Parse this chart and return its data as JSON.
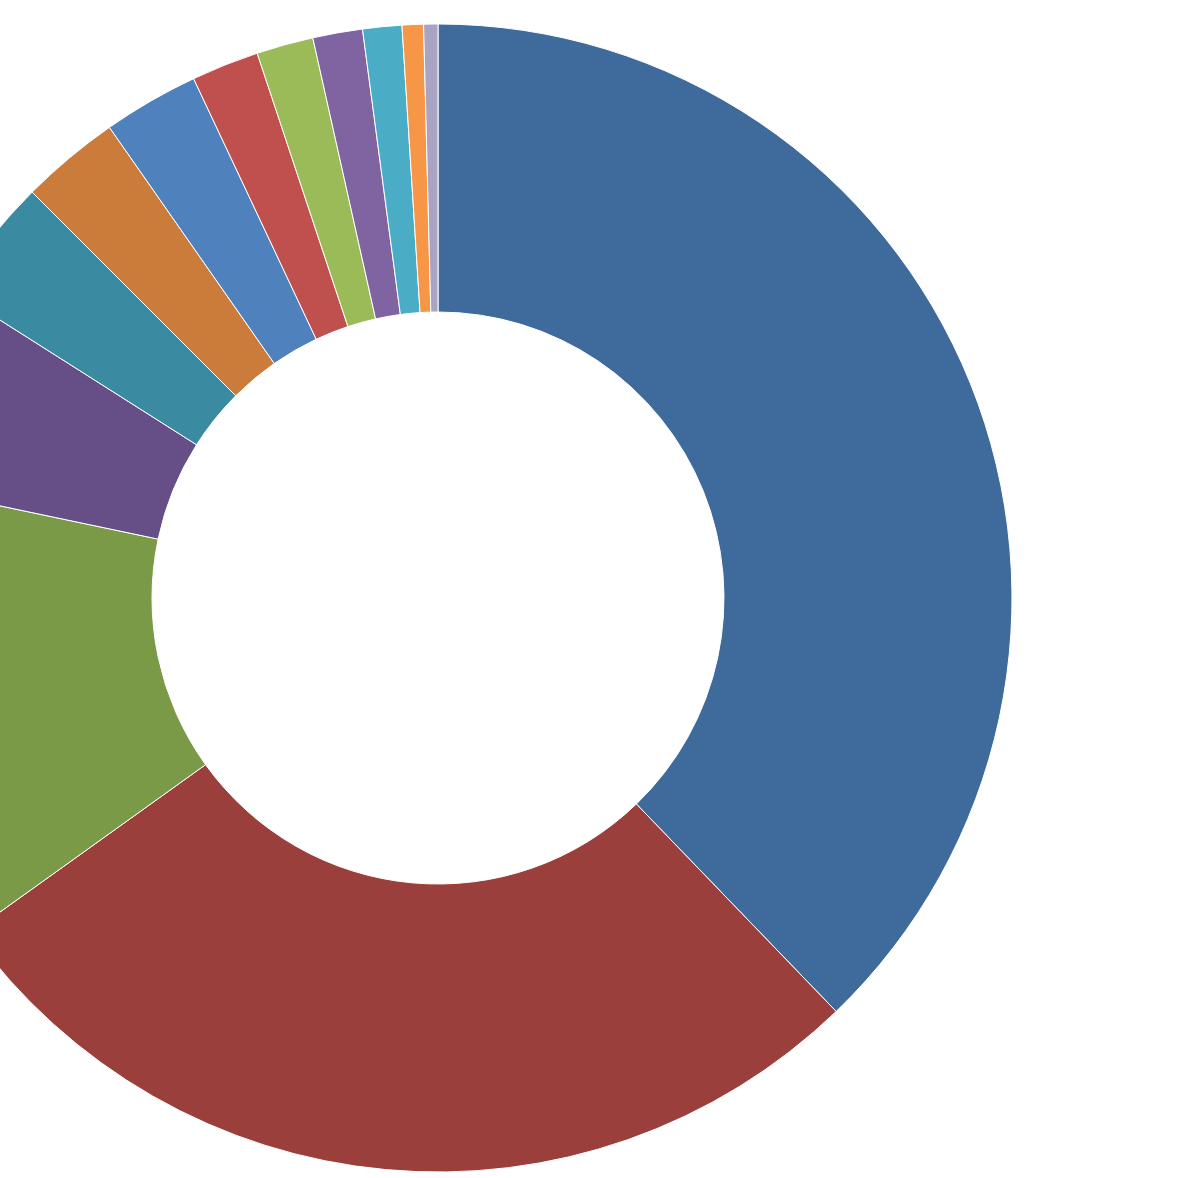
{
  "chart_data": {
    "type": "donut",
    "categories": [
      null,
      null,
      null,
      null,
      null,
      null,
      null,
      null,
      null,
      null,
      null,
      null,
      null
    ],
    "values": [
      37.8,
      27.3,
      13.2,
      5.7,
      3.5,
      2.8,
      2.7,
      1.9,
      1.6,
      1.4,
      1.1,
      0.6,
      0.4
    ],
    "colors": [
      "#3f6a9c",
      "#9b3f3c",
      "#7b9a48",
      "#664f87",
      "#3a8aa2",
      "#cb7c3a",
      "#4f81bd",
      "#c0504d",
      "#9bbb59",
      "#8064a2",
      "#4bacc6",
      "#f79646",
      "#a9a3c4"
    ]
  }
}
